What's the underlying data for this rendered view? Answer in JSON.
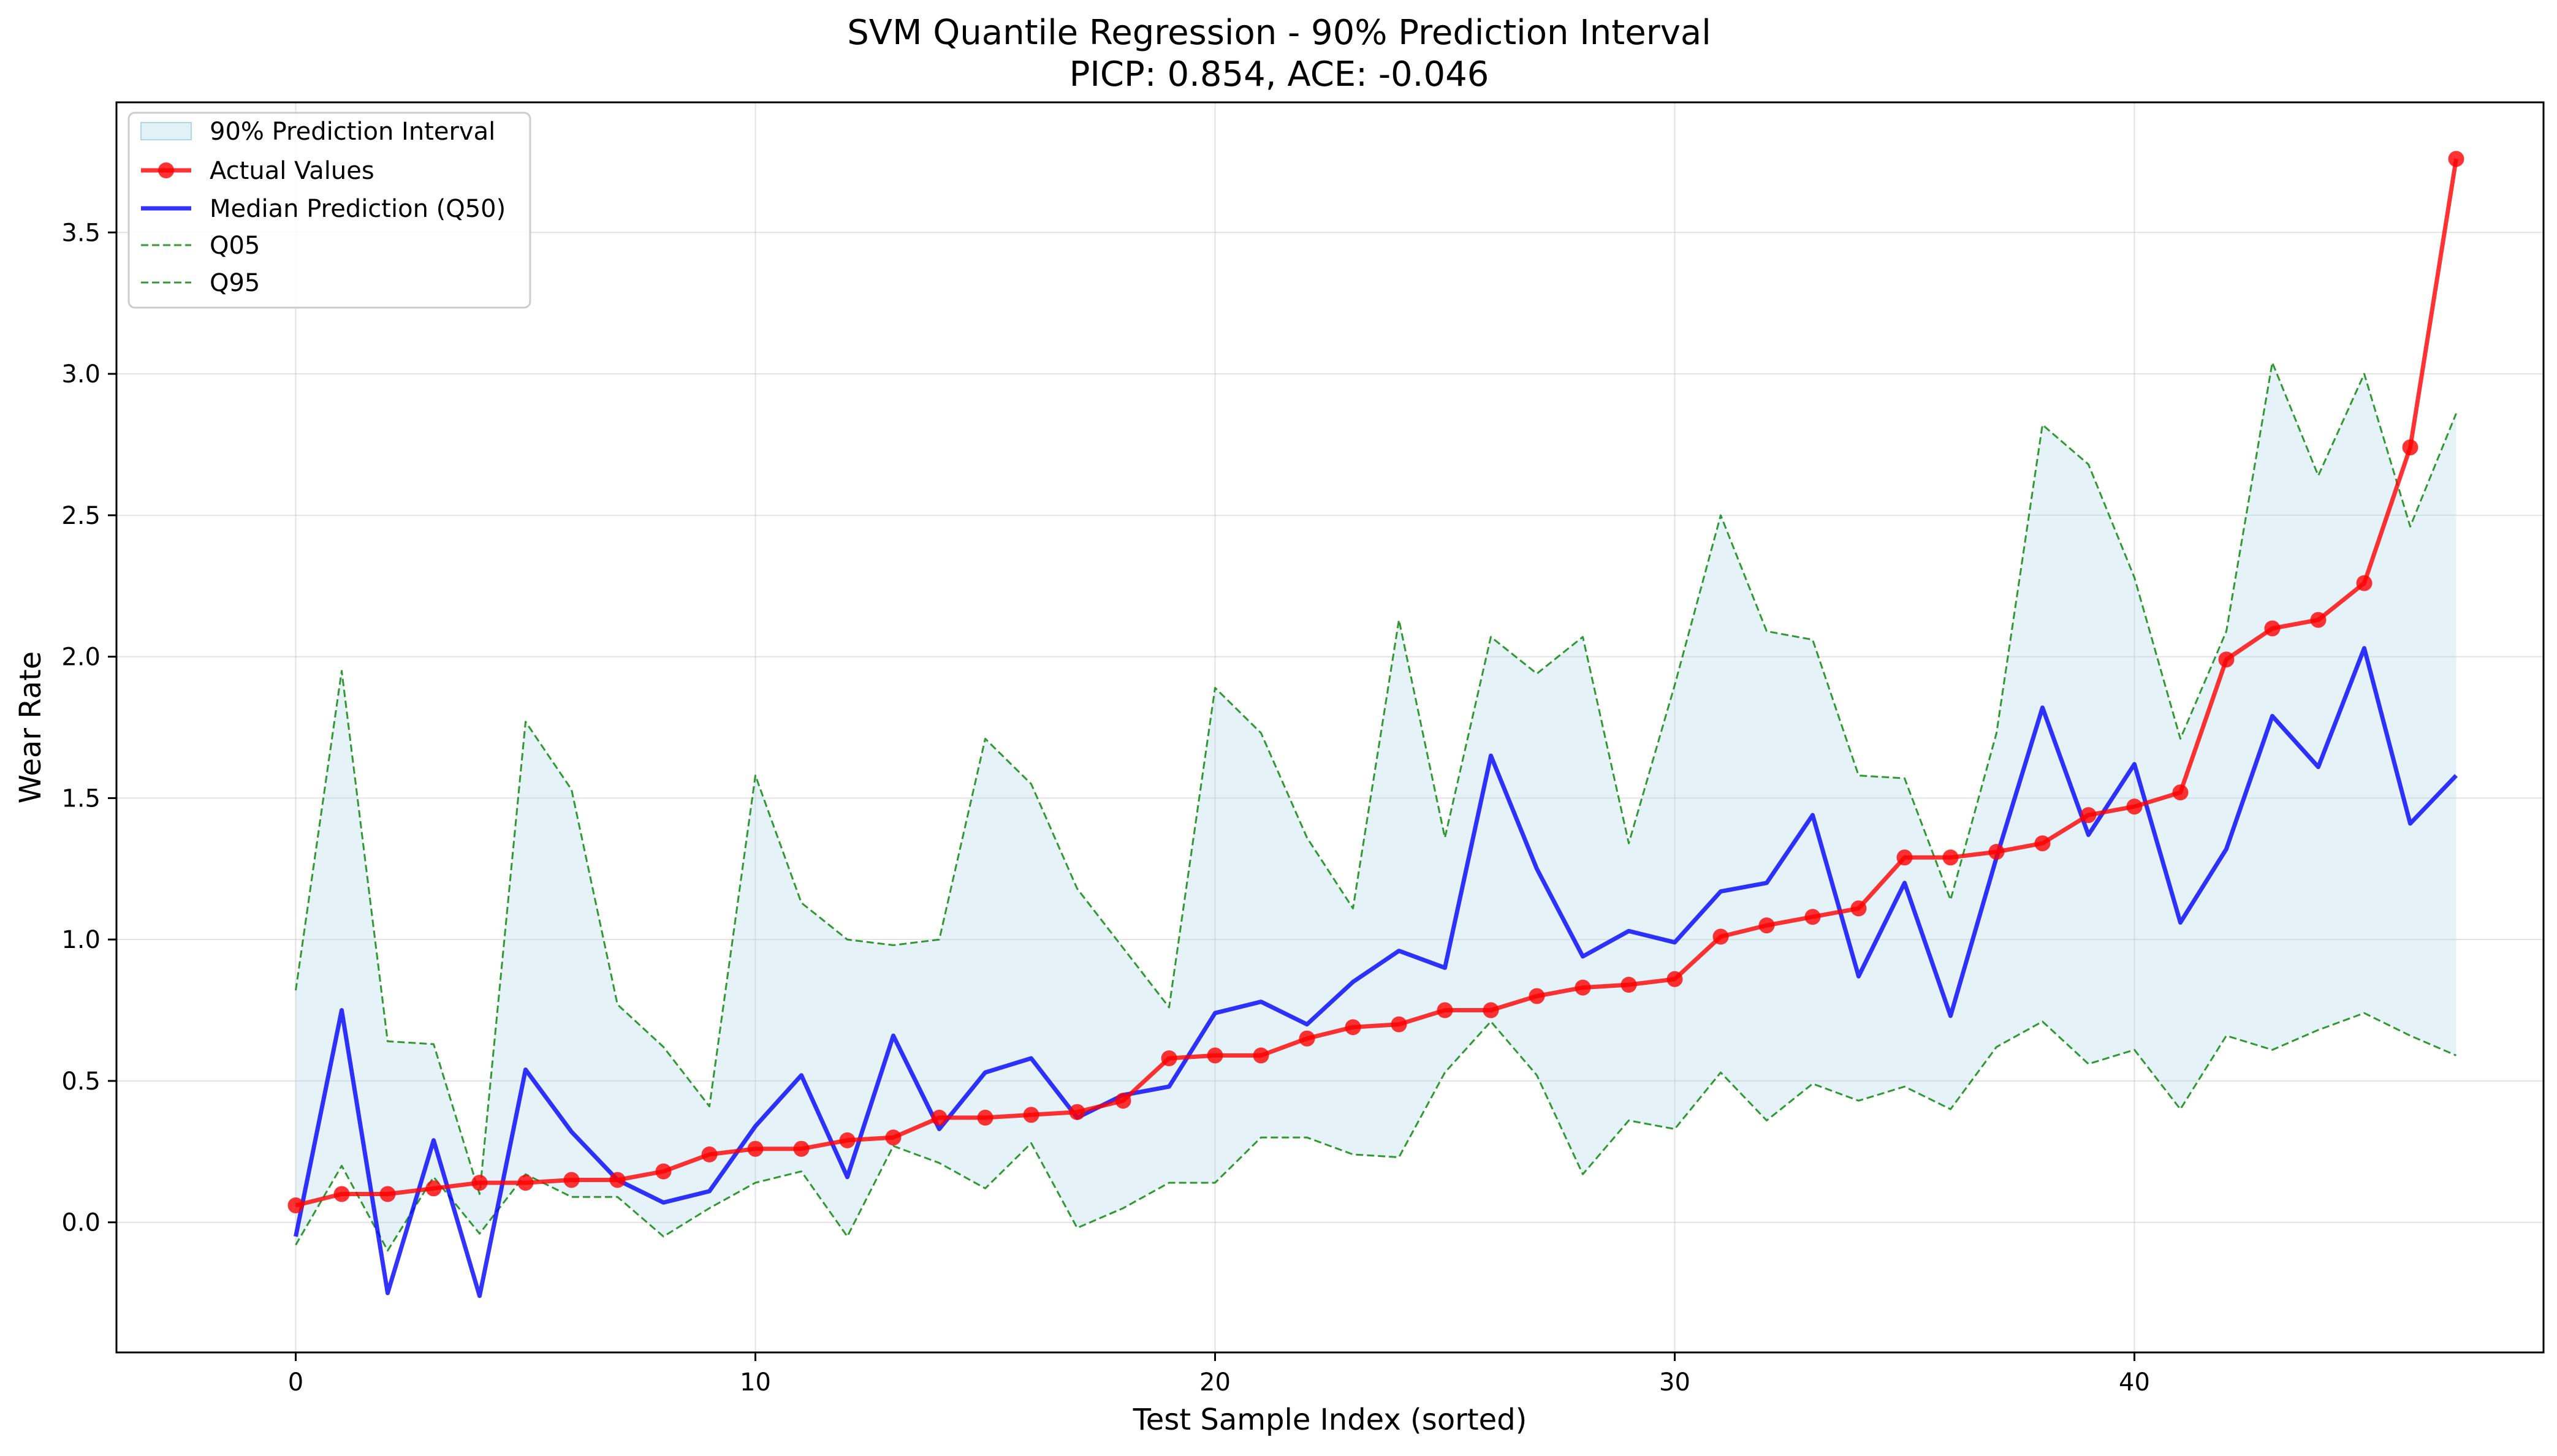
{
  "chart_data": {
    "type": "line",
    "title": "SVM Quantile Regression - 90% Prediction Interval",
    "subtitle": "PICP: 0.854, ACE: -0.046",
    "xlabel": "Test Sample Index (sorted)",
    "ylabel": "Wear Rate",
    "xlim": [
      -3.9,
      48.9
    ],
    "ylim": [
      -0.46,
      3.96
    ],
    "xticks": [
      0,
      10,
      20,
      30,
      40
    ],
    "yticks": [
      0.0,
      0.5,
      1.0,
      1.5,
      2.0,
      2.5,
      3.0,
      3.5
    ],
    "grid": true,
    "legend_position": "top-left",
    "x": [
      0,
      1,
      2,
      3,
      4,
      5,
      6,
      7,
      8,
      9,
      10,
      11,
      12,
      13,
      14,
      15,
      16,
      17,
      18,
      19,
      20,
      21,
      22,
      23,
      24,
      25,
      26,
      27,
      28,
      29,
      30,
      31,
      32,
      33,
      34,
      35,
      36,
      37,
      38,
      39,
      40,
      41,
      42,
      43,
      44,
      45,
      46,
      47
    ],
    "band": {
      "name": "90% Prediction Interval",
      "color": "#add8e6"
    },
    "series": [
      {
        "name": "Actual Values",
        "color": "#ff0000",
        "style": "solid-markers",
        "values": [
          0.06,
          0.1,
          0.1,
          0.12,
          0.14,
          0.14,
          0.15,
          0.15,
          0.18,
          0.24,
          0.26,
          0.26,
          0.29,
          0.3,
          0.37,
          0.37,
          0.38,
          0.39,
          0.43,
          0.58,
          0.59,
          0.59,
          0.65,
          0.69,
          0.7,
          0.75,
          0.75,
          0.8,
          0.83,
          0.84,
          0.86,
          1.01,
          1.05,
          1.08,
          1.11,
          1.29,
          1.29,
          1.31,
          1.34,
          1.44,
          1.47,
          1.52,
          1.99,
          2.1,
          2.13,
          2.26,
          2.74,
          3.76
        ]
      },
      {
        "name": "Median Prediction (Q50)",
        "color": "#0000ff",
        "style": "solid",
        "values": [
          -0.05,
          0.75,
          -0.25,
          0.29,
          -0.26,
          0.54,
          0.32,
          0.15,
          0.07,
          0.11,
          0.34,
          0.52,
          0.16,
          0.66,
          0.33,
          0.53,
          0.58,
          0.37,
          0.45,
          0.48,
          0.74,
          0.78,
          0.7,
          0.85,
          0.96,
          0.9,
          1.65,
          1.25,
          0.94,
          1.03,
          0.99,
          1.17,
          1.2,
          1.44,
          0.87,
          1.2,
          0.73,
          1.29,
          1.82,
          1.37,
          1.62,
          1.06,
          1.32,
          1.79,
          1.61,
          2.03,
          1.41,
          1.58
        ]
      },
      {
        "name": "Q05",
        "color": "#008000",
        "style": "dashed",
        "values": [
          -0.08,
          0.2,
          -0.1,
          0.16,
          -0.04,
          0.17,
          0.09,
          0.09,
          -0.05,
          0.05,
          0.14,
          0.18,
          -0.05,
          0.27,
          0.21,
          0.12,
          0.28,
          -0.02,
          0.05,
          0.14,
          0.14,
          0.3,
          0.3,
          0.24,
          0.23,
          0.53,
          0.71,
          0.52,
          0.17,
          0.36,
          0.33,
          0.53,
          0.36,
          0.49,
          0.43,
          0.48,
          0.4,
          0.62,
          0.71,
          0.56,
          0.61,
          0.4,
          0.66,
          0.61,
          0.68,
          0.74,
          0.66,
          0.59
        ]
      },
      {
        "name": "Q95",
        "color": "#008000",
        "style": "dashed",
        "values": [
          0.82,
          1.95,
          0.64,
          0.63,
          0.1,
          1.77,
          1.53,
          0.77,
          0.62,
          0.41,
          1.58,
          1.13,
          1.0,
          0.98,
          1.0,
          1.71,
          1.55,
          1.18,
          0.97,
          0.76,
          1.89,
          1.73,
          1.36,
          1.11,
          2.13,
          1.36,
          2.07,
          1.94,
          2.07,
          1.34,
          1.9,
          2.5,
          2.09,
          2.06,
          1.58,
          1.57,
          1.14,
          1.73,
          2.82,
          2.68,
          2.28,
          1.71,
          2.09,
          3.04,
          2.64,
          3.0,
          2.46,
          2.86
        ]
      }
    ]
  }
}
